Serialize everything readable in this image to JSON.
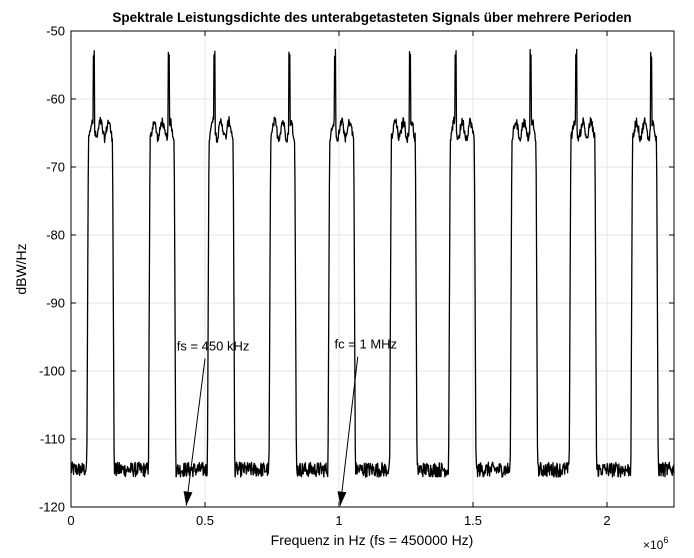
{
  "chart_data": {
    "type": "line",
    "title": "Spektrale Leistungsdichte des unterabgetasteten Signals über mehrere Perioden",
    "xlabel": "Frequenz in Hz (fs = 450000 Hz)",
    "ylabel": "dBW/Hz",
    "x_exponent_label": "×10",
    "x_exponent_power": "6",
    "xlim": [
      0,
      2250000
    ],
    "ylim": [
      -120,
      -50
    ],
    "x_scale_factor": 1000000,
    "xticks": [
      0,
      500000,
      1000000,
      1500000,
      2000000
    ],
    "xtick_labels": [
      "0",
      "0.5",
      "1",
      "1.5",
      "2"
    ],
    "yticks": [
      -120,
      -110,
      -100,
      -90,
      -80,
      -70,
      -60,
      -50
    ],
    "ytick_labels": [
      "-120",
      "-110",
      "-100",
      "-90",
      "-80",
      "-70",
      "-60",
      "-50"
    ],
    "grid": true,
    "series": [
      {
        "color": "#000000",
        "noise_floor": -114.5,
        "band_level": -64.5,
        "band_peak": -56.5,
        "bands": [
          {
            "start": 65000,
            "end": 155000,
            "peak": 85000
          },
          {
            "start": 295000,
            "end": 385000,
            "peak": 365000
          },
          {
            "start": 515000,
            "end": 605000,
            "peak": 535000
          },
          {
            "start": 745000,
            "end": 835000,
            "peak": 815000
          },
          {
            "start": 965000,
            "end": 1055000,
            "peak": 985000
          },
          {
            "start": 1195000,
            "end": 1285000,
            "peak": 1265000
          },
          {
            "start": 1415000,
            "end": 1505000,
            "peak": 1435000
          },
          {
            "start": 1645000,
            "end": 1735000,
            "peak": 1715000
          },
          {
            "start": 1865000,
            "end": 1955000,
            "peak": 1885000
          },
          {
            "start": 2095000,
            "end": 2185000,
            "peak": 2165000
          }
        ]
      }
    ],
    "annotations": [
      {
        "text": "fs = 450 kHz",
        "text_x": 530000,
        "text_y": -97,
        "arrow_x": 430000,
        "arrow_y": -119.8
      },
      {
        "text": "fc = 1 MHz",
        "text_x": 1100000,
        "text_y": -96.7,
        "arrow_x": 1005000,
        "arrow_y": -119.8
      }
    ]
  }
}
